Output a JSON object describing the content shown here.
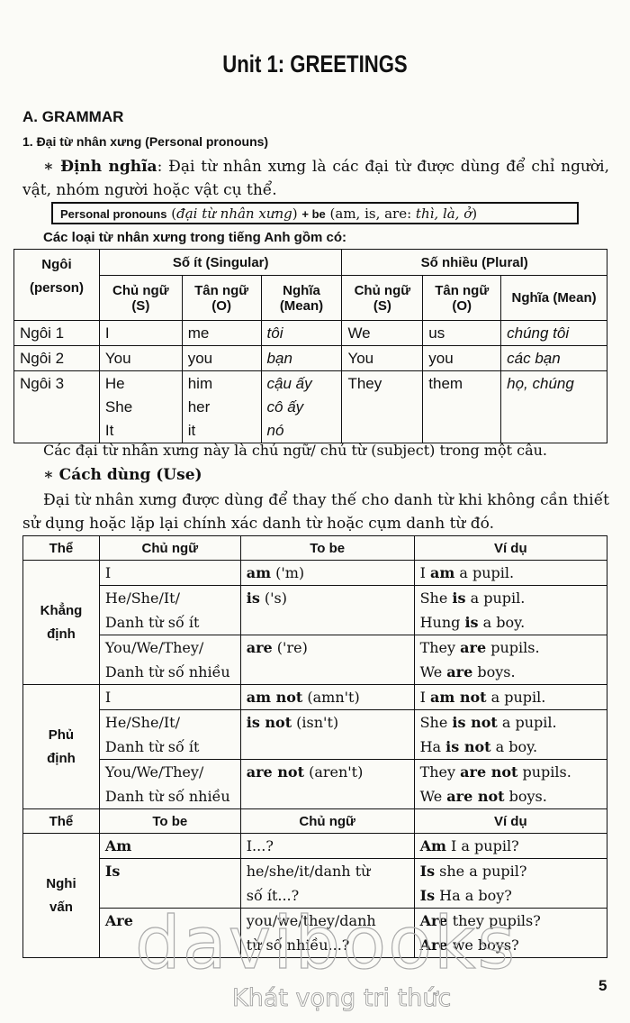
{
  "title": "Unit 1: GREETINGS",
  "section": "A. GRAMMAR",
  "subsection": "1. Đại từ nhân xưng (Personal pronouns)",
  "definition": {
    "label": "∗ Định nghĩa",
    "text": ": Đại từ nhân xưng là các đại từ được dùng để chỉ người, vật, nhóm người hoặc vật cụ thể."
  },
  "formula": {
    "p1": "Personal pronouns",
    "p2": " (",
    "p3": "đại từ nhân xưng",
    "p4": ") ",
    "p5": "+ be",
    "p6": " (am, is, are: ",
    "p7": "thì, là, ở",
    "p8": ")"
  },
  "types_intro": "Các loại từ nhân xưng trong tiếng Anh gồm có:",
  "pronoun_table": {
    "h_person": "Ngôi (person)",
    "h_singular": "Số ít (Singular)",
    "h_plural": "Số nhiều (Plural)",
    "h_subject": "Chủ ngữ (S)",
    "h_object": "Tân ngữ (O)",
    "h_mean": "Nghĩa (Mean)",
    "rows": [
      {
        "person": "Ngôi 1",
        "s": "I",
        "o": "me",
        "m": "tôi",
        "ps": "We",
        "po": "us",
        "pm": "chúng tôi"
      },
      {
        "person": "Ngôi 2",
        "s": "You",
        "o": "you",
        "m": "bạn",
        "ps": "You",
        "po": "you",
        "pm": "các bạn"
      },
      {
        "person": "Ngôi 3",
        "s": "He\nShe\nIt",
        "o": "him\nher\nit",
        "m": "cậu ấy\ncô ấy\nnó",
        "ps": "They",
        "po": "them",
        "pm": "họ, chúng"
      }
    ]
  },
  "after_table": "Các đại từ nhân xưng này là chủ ngữ/ chủ từ (subject) trong một câu.",
  "use_heading": "∗ Cách dùng (Use)",
  "use_text": "Đại từ nhân xưng được dùng để thay thế cho danh từ khi không cần thiết sử dụng hoặc lặp lại chính xác danh từ hoặc cụm danh từ đó.",
  "usage_table": {
    "headers": [
      "Thể",
      "Chủ ngữ",
      "To be",
      "Ví dụ"
    ],
    "headers_q": [
      "Thể",
      "To be",
      "Chủ ngữ",
      "Ví dụ"
    ],
    "groups": [
      {
        "form": "Khẳng định",
        "rows": [
          {
            "a": "I",
            "b": "am ('m)",
            "c": "I am a pupil."
          },
          {
            "a": "He/She/It/\nDanh từ số ít",
            "b": "is ('s)",
            "c": "She is a pupil.\nHung is a boy."
          },
          {
            "a": "You/We/They/\nDanh từ số nhiều",
            "b": "are ('re)",
            "c": "They are pupils.\nWe are boys."
          }
        ]
      },
      {
        "form": "Phủ định",
        "rows": [
          {
            "a": "I",
            "b": "am not (amn't)",
            "c": "I am not a pupil."
          },
          {
            "a": "He/She/It/\nDanh từ số ít",
            "b": "is not (isn't)",
            "c": "She is not a pupil.\nHa is not a boy."
          },
          {
            "a": "You/We/They/\nDanh từ số nhiều",
            "b": "are not (aren't)",
            "c": "They are not pupils.\nWe are not boys."
          }
        ]
      },
      {
        "form": "Nghi vấn",
        "rows": [
          {
            "a": "Am",
            "b": "I...?",
            "c": "Am I a pupil?"
          },
          {
            "a": "Is",
            "b": "he/she/it/danh từ\nsố ít...?",
            "c": "Is she a pupil?\nIs Ha a boy?"
          },
          {
            "a": "Are",
            "b": "you/we/they/danh\ntừ số nhiều...?",
            "c": "Are they pupils?\nAre we boys?"
          }
        ]
      }
    ]
  },
  "watermark": {
    "brand": "davibooks",
    "slogan": "Khát vọng tri thức"
  },
  "page_number": "5"
}
